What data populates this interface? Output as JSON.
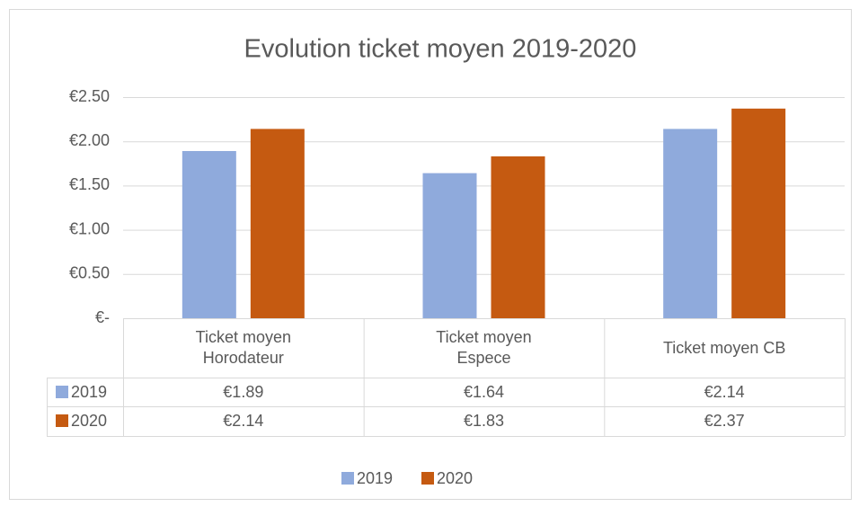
{
  "chart_data": {
    "type": "bar",
    "title": "Evolution ticket moyen 2019-2020",
    "categories": [
      "Ticket moyen Horodateur",
      "Ticket moyen Espece",
      "Ticket moyen CB"
    ],
    "series": [
      {
        "name": "2019",
        "color": "#8faadc",
        "values": [
          1.89,
          1.64,
          2.14
        ],
        "value_labels": [
          "€1.89",
          "€1.64",
          "€2.14"
        ]
      },
      {
        "name": "2020",
        "color": "#c55a11",
        "values": [
          2.14,
          1.83,
          2.37
        ],
        "value_labels": [
          "€2.14",
          "€1.83",
          "€2.37"
        ]
      }
    ],
    "ylim": [
      0,
      2.5
    ],
    "yticks": [
      {
        "value": 0,
        "label": "€-"
      },
      {
        "value": 0.5,
        "label": "€0.50"
      },
      {
        "value": 1,
        "label": "€1.00"
      },
      {
        "value": 1.5,
        "label": "€1.50"
      },
      {
        "value": 2,
        "label": "€2.00"
      },
      {
        "value": 2.5,
        "label": "€2.50"
      }
    ],
    "grid": true,
    "legend": "bottom",
    "data_table": true
  }
}
